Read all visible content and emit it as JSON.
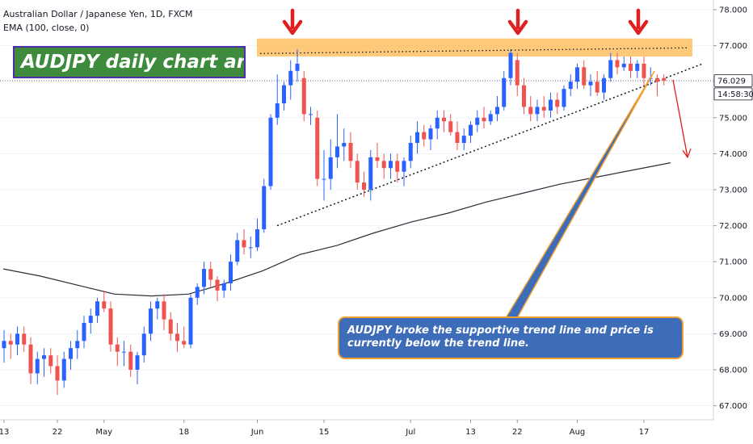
{
  "header": {
    "symbol_line": "Australian Dollar / Japanese Yen, 1D, FXCM",
    "indicator_line": "EMA (100, close, 0)"
  },
  "annotations": {
    "title": "AUDJPY daily chart analysis",
    "note": "AUDJPY broke the supportive trend line and price is currently below the trend line."
  },
  "price_axis": {
    "ticks": [
      "78.000",
      "77.000",
      "76.000",
      "75.000",
      "74.000",
      "73.000",
      "72.000",
      "71.000",
      "70.000",
      "69.000",
      "68.000",
      "67.000"
    ],
    "last_price": "76.029",
    "countdown": "14:58:30"
  },
  "time_axis": {
    "ticks": [
      "13",
      "22",
      "May",
      "18",
      "Jun",
      "15",
      "Jul",
      "13",
      "22",
      "Aug",
      "17"
    ]
  },
  "colors": {
    "bull": "#2962ff",
    "bear": "#ef5350",
    "ema": "#2a2e39",
    "resistance_zone": "#ffb74d",
    "arrow": "#e02020",
    "title_bg": "#3e8b3e",
    "note_bg": "#3d6cb9"
  },
  "chart_data": {
    "type": "candlestick",
    "ylim": [
      66.5,
      78.0
    ],
    "y_ticks": [
      78,
      77,
      76,
      75,
      74,
      73,
      72,
      71,
      70,
      69,
      68,
      67
    ],
    "candles": [
      {
        "o": 68.6,
        "h": 69.1,
        "l": 68.2,
        "c": 68.8
      },
      {
        "o": 68.8,
        "h": 69.0,
        "l": 68.3,
        "c": 68.7
      },
      {
        "o": 68.7,
        "h": 69.2,
        "l": 68.4,
        "c": 69.0
      },
      {
        "o": 69.0,
        "h": 69.2,
        "l": 68.5,
        "c": 68.7
      },
      {
        "o": 68.7,
        "h": 68.9,
        "l": 67.6,
        "c": 67.9
      },
      {
        "o": 67.9,
        "h": 68.5,
        "l": 67.6,
        "c": 68.3
      },
      {
        "o": 68.3,
        "h": 68.6,
        "l": 67.8,
        "c": 68.4
      },
      {
        "o": 68.4,
        "h": 68.6,
        "l": 67.9,
        "c": 68.1
      },
      {
        "o": 68.1,
        "h": 68.4,
        "l": 67.3,
        "c": 67.7
      },
      {
        "o": 67.7,
        "h": 68.5,
        "l": 67.5,
        "c": 68.3
      },
      {
        "o": 68.3,
        "h": 68.8,
        "l": 68.0,
        "c": 68.6
      },
      {
        "o": 68.6,
        "h": 69.1,
        "l": 68.3,
        "c": 68.8
      },
      {
        "o": 68.8,
        "h": 69.5,
        "l": 68.6,
        "c": 69.3
      },
      {
        "o": 69.3,
        "h": 69.7,
        "l": 69.0,
        "c": 69.5
      },
      {
        "o": 69.5,
        "h": 70.0,
        "l": 69.3,
        "c": 69.9
      },
      {
        "o": 69.9,
        "h": 70.2,
        "l": 69.6,
        "c": 69.7
      },
      {
        "o": 69.7,
        "h": 69.9,
        "l": 68.5,
        "c": 68.7
      },
      {
        "o": 68.7,
        "h": 68.9,
        "l": 68.1,
        "c": 68.5
      },
      {
        "o": 68.5,
        "h": 68.8,
        "l": 68.1,
        "c": 68.5
      },
      {
        "o": 68.5,
        "h": 68.7,
        "l": 67.8,
        "c": 68.0
      },
      {
        "o": 68.0,
        "h": 68.5,
        "l": 67.6,
        "c": 68.4
      },
      {
        "o": 68.4,
        "h": 69.2,
        "l": 68.2,
        "c": 69.0
      },
      {
        "o": 69.0,
        "h": 69.9,
        "l": 68.8,
        "c": 69.7
      },
      {
        "o": 69.7,
        "h": 70.0,
        "l": 69.4,
        "c": 69.9
      },
      {
        "o": 69.9,
        "h": 70.1,
        "l": 69.1,
        "c": 69.4
      },
      {
        "o": 69.4,
        "h": 69.6,
        "l": 68.8,
        "c": 69.0
      },
      {
        "o": 69.0,
        "h": 69.3,
        "l": 68.5,
        "c": 68.8
      },
      {
        "o": 68.8,
        "h": 69.2,
        "l": 68.6,
        "c": 68.7
      },
      {
        "o": 68.7,
        "h": 70.1,
        "l": 68.6,
        "c": 70.0
      },
      {
        "o": 70.0,
        "h": 70.4,
        "l": 69.8,
        "c": 70.3
      },
      {
        "o": 70.3,
        "h": 71.0,
        "l": 70.1,
        "c": 70.8
      },
      {
        "o": 70.8,
        "h": 71.0,
        "l": 70.3,
        "c": 70.5
      },
      {
        "o": 70.5,
        "h": 70.6,
        "l": 69.9,
        "c": 70.2
      },
      {
        "o": 70.2,
        "h": 70.5,
        "l": 70.0,
        "c": 70.4
      },
      {
        "o": 70.4,
        "h": 71.2,
        "l": 70.2,
        "c": 71.0
      },
      {
        "o": 71.0,
        "h": 71.8,
        "l": 70.9,
        "c": 71.6
      },
      {
        "o": 71.6,
        "h": 71.9,
        "l": 71.2,
        "c": 71.4
      },
      {
        "o": 71.4,
        "h": 71.7,
        "l": 71.1,
        "c": 71.4
      },
      {
        "o": 71.4,
        "h": 72.2,
        "l": 71.3,
        "c": 71.9
      },
      {
        "o": 71.9,
        "h": 73.3,
        "l": 71.8,
        "c": 73.1
      },
      {
        "o": 73.1,
        "h": 75.1,
        "l": 73.0,
        "c": 75.0
      },
      {
        "o": 75.0,
        "h": 76.2,
        "l": 74.8,
        "c": 75.4
      },
      {
        "o": 75.4,
        "h": 76.0,
        "l": 75.2,
        "c": 75.9
      },
      {
        "o": 75.9,
        "h": 76.6,
        "l": 75.5,
        "c": 76.3
      },
      {
        "o": 76.3,
        "h": 76.9,
        "l": 76.0,
        "c": 76.5
      },
      {
        "o": 76.1,
        "h": 76.3,
        "l": 74.9,
        "c": 75.1
      },
      {
        "o": 75.1,
        "h": 75.3,
        "l": 74.8,
        "c": 75.1
      },
      {
        "o": 75.0,
        "h": 75.2,
        "l": 73.1,
        "c": 73.3
      },
      {
        "o": 73.3,
        "h": 74.1,
        "l": 72.7,
        "c": 73.3
      },
      {
        "o": 73.3,
        "h": 74.4,
        "l": 73.0,
        "c": 73.9
      },
      {
        "o": 73.9,
        "h": 75.1,
        "l": 73.6,
        "c": 74.2
      },
      {
        "o": 74.2,
        "h": 74.7,
        "l": 73.8,
        "c": 74.3
      },
      {
        "o": 74.3,
        "h": 74.6,
        "l": 73.6,
        "c": 73.8
      },
      {
        "o": 73.8,
        "h": 74.0,
        "l": 73.0,
        "c": 73.2
      },
      {
        "o": 73.2,
        "h": 73.5,
        "l": 72.8,
        "c": 73.0
      },
      {
        "o": 73.0,
        "h": 74.1,
        "l": 72.7,
        "c": 73.9
      },
      {
        "o": 73.9,
        "h": 74.3,
        "l": 73.6,
        "c": 73.8
      },
      {
        "o": 73.8,
        "h": 74.0,
        "l": 73.3,
        "c": 73.6
      },
      {
        "o": 73.6,
        "h": 74.0,
        "l": 73.3,
        "c": 73.8
      },
      {
        "o": 73.8,
        "h": 74.0,
        "l": 73.2,
        "c": 73.5
      },
      {
        "o": 73.5,
        "h": 73.9,
        "l": 73.1,
        "c": 73.8
      },
      {
        "o": 73.8,
        "h": 74.5,
        "l": 73.6,
        "c": 74.3
      },
      {
        "o": 74.3,
        "h": 74.9,
        "l": 74.0,
        "c": 74.6
      },
      {
        "o": 74.6,
        "h": 74.8,
        "l": 74.2,
        "c": 74.4
      },
      {
        "o": 74.4,
        "h": 74.8,
        "l": 74.1,
        "c": 74.7
      },
      {
        "o": 74.7,
        "h": 75.2,
        "l": 74.4,
        "c": 75.0
      },
      {
        "o": 75.0,
        "h": 75.2,
        "l": 74.6,
        "c": 74.9
      },
      {
        "o": 74.9,
        "h": 75.1,
        "l": 74.5,
        "c": 74.6
      },
      {
        "o": 74.6,
        "h": 74.9,
        "l": 74.1,
        "c": 74.3
      },
      {
        "o": 74.3,
        "h": 74.7,
        "l": 74.1,
        "c": 74.5
      },
      {
        "o": 74.5,
        "h": 74.9,
        "l": 74.3,
        "c": 74.8
      },
      {
        "o": 74.8,
        "h": 75.2,
        "l": 74.6,
        "c": 75.0
      },
      {
        "o": 75.0,
        "h": 75.3,
        "l": 74.7,
        "c": 74.9
      },
      {
        "o": 74.9,
        "h": 75.2,
        "l": 74.8,
        "c": 75.1
      },
      {
        "o": 75.1,
        "h": 75.6,
        "l": 74.9,
        "c": 75.3
      },
      {
        "o": 75.3,
        "h": 76.3,
        "l": 75.2,
        "c": 76.1
      },
      {
        "o": 76.1,
        "h": 76.9,
        "l": 75.9,
        "c": 76.8
      },
      {
        "o": 76.6,
        "h": 76.8,
        "l": 75.6,
        "c": 75.9
      },
      {
        "o": 75.9,
        "h": 76.1,
        "l": 75.1,
        "c": 75.3
      },
      {
        "o": 75.3,
        "h": 75.6,
        "l": 74.9,
        "c": 75.1
      },
      {
        "o": 75.1,
        "h": 75.5,
        "l": 74.9,
        "c": 75.3
      },
      {
        "o": 75.3,
        "h": 75.6,
        "l": 75.0,
        "c": 75.2
      },
      {
        "o": 75.2,
        "h": 75.7,
        "l": 75.0,
        "c": 75.5
      },
      {
        "o": 75.5,
        "h": 75.7,
        "l": 75.1,
        "c": 75.3
      },
      {
        "o": 75.3,
        "h": 75.9,
        "l": 75.2,
        "c": 75.8
      },
      {
        "o": 75.8,
        "h": 76.2,
        "l": 75.6,
        "c": 76.0
      },
      {
        "o": 76.0,
        "h": 76.5,
        "l": 75.8,
        "c": 76.4
      },
      {
        "o": 76.4,
        "h": 76.6,
        "l": 75.8,
        "c": 75.9
      },
      {
        "o": 75.9,
        "h": 76.2,
        "l": 75.6,
        "c": 76.0
      },
      {
        "o": 76.0,
        "h": 76.3,
        "l": 75.6,
        "c": 75.7
      },
      {
        "o": 75.7,
        "h": 76.2,
        "l": 75.5,
        "c": 76.1
      },
      {
        "o": 76.1,
        "h": 76.8,
        "l": 76.0,
        "c": 76.6
      },
      {
        "o": 76.6,
        "h": 76.8,
        "l": 76.2,
        "c": 76.4
      },
      {
        "o": 76.4,
        "h": 76.7,
        "l": 76.3,
        "c": 76.5
      },
      {
        "o": 76.5,
        "h": 76.7,
        "l": 76.1,
        "c": 76.3
      },
      {
        "o": 76.3,
        "h": 76.6,
        "l": 76.1,
        "c": 76.5
      },
      {
        "o": 76.5,
        "h": 76.7,
        "l": 75.9,
        "c": 76.1
      },
      {
        "o": 76.1,
        "h": 76.4,
        "l": 75.9,
        "c": 76.1
      },
      {
        "o": 76.1,
        "h": 76.2,
        "l": 75.6,
        "c": 76.0
      },
      {
        "o": 76.1,
        "h": 76.2,
        "l": 75.9,
        "c": 76.03
      }
    ],
    "ema_100": [
      70.8,
      70.6,
      70.35,
      70.1,
      70.05,
      70.1,
      70.4,
      70.75,
      71.2,
      71.45,
      71.8,
      72.1,
      72.35,
      72.65,
      72.9,
      73.15,
      73.35,
      73.55,
      73.75
    ],
    "resistance_zone": [
      76.7,
      77.2
    ],
    "resistance_level": 76.85,
    "support_trend_line": [
      72.0,
      76.1
    ],
    "last_price": 76.029
  }
}
